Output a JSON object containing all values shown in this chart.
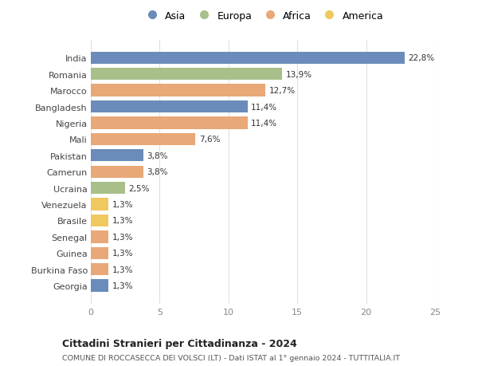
{
  "countries": [
    "India",
    "Romania",
    "Marocco",
    "Bangladesh",
    "Nigeria",
    "Mali",
    "Pakistan",
    "Camerun",
    "Ucraina",
    "Venezuela",
    "Brasile",
    "Senegal",
    "Guinea",
    "Burkina Faso",
    "Georgia"
  ],
  "values": [
    22.8,
    13.9,
    12.7,
    11.4,
    11.4,
    7.6,
    3.8,
    3.8,
    2.5,
    1.3,
    1.3,
    1.3,
    1.3,
    1.3,
    1.3
  ],
  "labels": [
    "22,8%",
    "13,9%",
    "12,7%",
    "11,4%",
    "11,4%",
    "7,6%",
    "3,8%",
    "3,8%",
    "2,5%",
    "1,3%",
    "1,3%",
    "1,3%",
    "1,3%",
    "1,3%",
    "1,3%"
  ],
  "continents": [
    "Asia",
    "Europa",
    "Africa",
    "Asia",
    "Africa",
    "Africa",
    "Asia",
    "Africa",
    "Europa",
    "America",
    "America",
    "Africa",
    "Africa",
    "Africa",
    "Asia"
  ],
  "colors": {
    "Asia": "#6b8cba",
    "Europa": "#a8bf8a",
    "Africa": "#e8a878",
    "America": "#f0c860"
  },
  "legend_order": [
    "Asia",
    "Europa",
    "Africa",
    "America"
  ],
  "title1": "Cittadini Stranieri per Cittadinanza - 2024",
  "title2": "COMUNE DI ROCCASECCA DEI VOLSCI (LT) - Dati ISTAT al 1° gennaio 2024 - TUTTITALIA.IT",
  "xlim": [
    0,
    25
  ],
  "xticks": [
    0,
    5,
    10,
    15,
    20,
    25
  ],
  "background_color": "#ffffff",
  "grid_color": "#e0e0e0"
}
